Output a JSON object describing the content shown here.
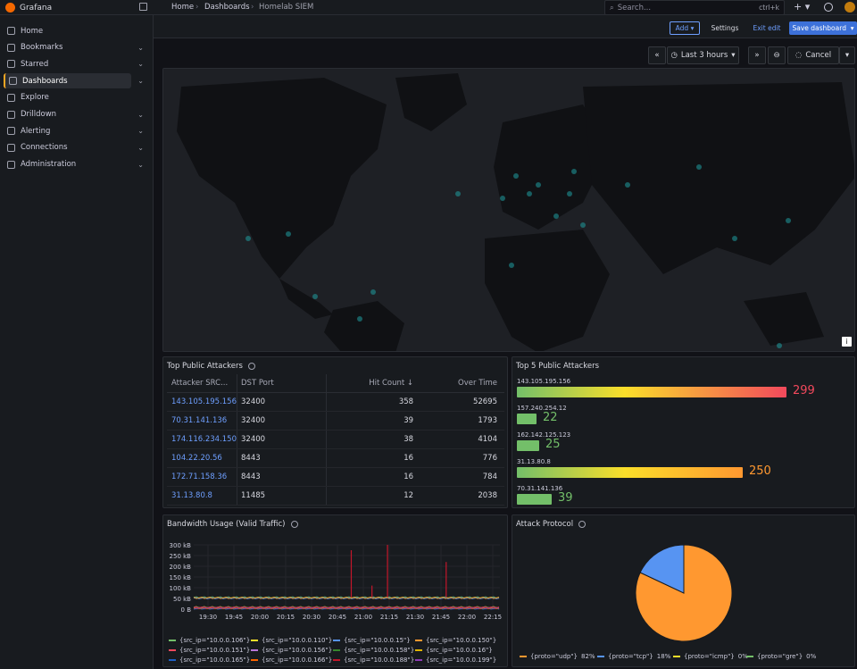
{
  "app": {
    "name": "Grafana"
  },
  "breadcrumb": [
    "Home",
    "Dashboards",
    "Homelab SIEM"
  ],
  "search": {
    "placeholder": "Search...",
    "shortcut": "ctrl+k"
  },
  "sidebar": {
    "items": [
      {
        "label": "Home",
        "icon": "home-icon",
        "chevron": false
      },
      {
        "label": "Bookmarks",
        "icon": "bookmark-icon",
        "chevron": true
      },
      {
        "label": "Starred",
        "icon": "star-icon",
        "chevron": true
      },
      {
        "label": "Dashboards",
        "icon": "dashboards-icon",
        "chevron": true,
        "active": true
      },
      {
        "label": "Explore",
        "icon": "compass-icon",
        "chevron": false
      },
      {
        "label": "Drilldown",
        "icon": "drilldown-icon",
        "chevron": true
      },
      {
        "label": "Alerting",
        "icon": "bell-icon",
        "chevron": true
      },
      {
        "label": "Connections",
        "icon": "connections-icon",
        "chevron": true
      },
      {
        "label": "Administration",
        "icon": "gear-icon",
        "chevron": true
      }
    ]
  },
  "toolbar": {
    "add": "Add",
    "settings": "Settings",
    "exit_edit": "Exit edit",
    "save": "Save dashboard"
  },
  "timepicker": {
    "range": "Last 3 hours",
    "cancel": "Cancel"
  },
  "attackers_table": {
    "title": "Top Public Attackers",
    "columns": [
      "Attacker SRC...",
      "DST Port",
      "Hit Count",
      "Over Time"
    ],
    "rows": [
      [
        "143.105.195.156",
        "32400",
        "358",
        "52695"
      ],
      [
        "70.31.141.136",
        "32400",
        "39",
        "1793"
      ],
      [
        "174.116.234.150",
        "32400",
        "38",
        "4104"
      ],
      [
        "104.22.20.56",
        "8443",
        "16",
        "776"
      ],
      [
        "172.71.158.36",
        "8443",
        "16",
        "784"
      ],
      [
        "31.13.80.8",
        "11485",
        "12",
        "2038"
      ]
    ]
  },
  "top5": {
    "title": "Top 5 Public Attackers",
    "max": 299,
    "items": [
      {
        "label": "143.105.195.156",
        "value": 299,
        "display": "299",
        "color": "#f2495c"
      },
      {
        "label": "157.240.254.12",
        "value": 22,
        "display": "22",
        "color": "#73bf69"
      },
      {
        "label": "162.142.125.123",
        "value": 25,
        "display": "25",
        "color": "#73bf69"
      },
      {
        "label": "31.13.80.8",
        "value": 250,
        "display": "250",
        "color": "#ff9830"
      },
      {
        "label": "70.31.141.136",
        "value": 39,
        "display": "39",
        "color": "#73bf69"
      }
    ]
  },
  "bandwidth": {
    "title": "Bandwidth Usage (Valid Traffic)",
    "legend": [
      {
        "name": "{src_ip=\"10.0.0.106\"}",
        "color": "#73bf69"
      },
      {
        "name": "{src_ip=\"10.0.0.110\"}",
        "color": "#fade2a"
      },
      {
        "name": "{src_ip=\"10.0.0.15\"}",
        "color": "#5794f2"
      },
      {
        "name": "{src_ip=\"10.0.0.150\"}",
        "color": "#ff9830"
      },
      {
        "name": "{src_ip=\"10.0.0.151\"}",
        "color": "#f2495c"
      },
      {
        "name": "{src_ip=\"10.0.0.156\"}",
        "color": "#b877d9"
      },
      {
        "name": "{src_ip=\"10.0.0.158\"}",
        "color": "#37872d"
      },
      {
        "name": "{src_ip=\"10.0.0.16\"}",
        "color": "#e0b400"
      },
      {
        "name": "{src_ip=\"10.0.0.165\"}",
        "color": "#1f60c4"
      },
      {
        "name": "{src_ip=\"10.0.0.166\"}",
        "color": "#fa6400"
      },
      {
        "name": "{src_ip=\"10.0.0.188\"}",
        "color": "#c4162a"
      },
      {
        "name": "{src_ip=\"10.0.0.199\"}",
        "color": "#8f3bb8"
      }
    ]
  },
  "protocol": {
    "title": "Attack Protocol",
    "legend": [
      {
        "name": "{proto=\"udp\"}",
        "pct": "82%",
        "color": "#ff9830"
      },
      {
        "name": "{proto=\"tcp\"}",
        "pct": "18%",
        "color": "#5794f2"
      },
      {
        "name": "{proto=\"icmp\"}",
        "pct": "0%",
        "color": "#fade2a"
      },
      {
        "name": "{proto=\"gre\"}",
        "pct": "0%",
        "color": "#73bf69"
      }
    ]
  },
  "chart_data": [
    {
      "type": "line",
      "title": "Bandwidth Usage (Valid Traffic)",
      "x": [
        "19:30",
        "19:45",
        "20:00",
        "20:15",
        "20:30",
        "20:45",
        "21:00",
        "21:15",
        "21:30",
        "21:45",
        "22:00",
        "22:15"
      ],
      "yticks": [
        "0 B",
        "50 kB",
        "100 kB",
        "150 kB",
        "200 kB",
        "250 kB",
        "300 kB"
      ],
      "ylim": [
        0,
        300
      ],
      "yunit": "kB",
      "spikes_at": [
        {
          "x": "20:53",
          "y": 275
        },
        {
          "x": "21:05",
          "y": 110
        },
        {
          "x": "21:14",
          "y": 300
        },
        {
          "x": "21:48",
          "y": 220
        }
      ],
      "baseline": 55
    },
    {
      "type": "pie",
      "title": "Attack Protocol",
      "categories": [
        "udp",
        "tcp",
        "icmp",
        "gre"
      ],
      "values": [
        82,
        18,
        0,
        0
      ]
    }
  ]
}
